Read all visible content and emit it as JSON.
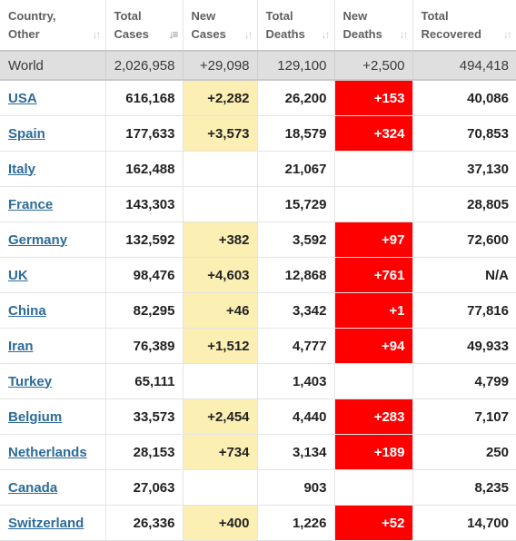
{
  "headers": [
    {
      "line1": "Country,",
      "line2": "Other",
      "sort_icon": "sort-icon"
    },
    {
      "line1": "Total",
      "line2": "Cases",
      "sort_icon": "sort-desc-icon"
    },
    {
      "line1": "New",
      "line2": "Cases",
      "sort_icon": "sort-icon"
    },
    {
      "line1": "Total",
      "line2": "Deaths",
      "sort_icon": "sort-icon"
    },
    {
      "line1": "New",
      "line2": "Deaths",
      "sort_icon": "sort-icon"
    },
    {
      "line1": "Total",
      "line2": "Recovered",
      "sort_icon": "sort-icon"
    }
  ],
  "colors": {
    "new_cases_highlight": "#fcefb3",
    "new_deaths_highlight": "#ff0000",
    "link": "#2d6b99",
    "world_row": "#dfdfdf"
  },
  "world": {
    "country": "World",
    "total_cases": "2,026,958",
    "new_cases": "+29,098",
    "total_deaths": "129,100",
    "new_deaths": "+2,500",
    "total_recovered": "494,418"
  },
  "rows": [
    {
      "country": "USA",
      "total_cases": "616,168",
      "new_cases": "+2,282",
      "total_deaths": "26,200",
      "new_deaths": "+153",
      "total_recovered": "40,086"
    },
    {
      "country": "Spain",
      "total_cases": "177,633",
      "new_cases": "+3,573",
      "total_deaths": "18,579",
      "new_deaths": "+324",
      "total_recovered": "70,853"
    },
    {
      "country": "Italy",
      "total_cases": "162,488",
      "new_cases": "",
      "total_deaths": "21,067",
      "new_deaths": "",
      "total_recovered": "37,130"
    },
    {
      "country": "France",
      "total_cases": "143,303",
      "new_cases": "",
      "total_deaths": "15,729",
      "new_deaths": "",
      "total_recovered": "28,805"
    },
    {
      "country": "Germany",
      "total_cases": "132,592",
      "new_cases": "+382",
      "total_deaths": "3,592",
      "new_deaths": "+97",
      "total_recovered": "72,600"
    },
    {
      "country": "UK",
      "total_cases": "98,476",
      "new_cases": "+4,603",
      "total_deaths": "12,868",
      "new_deaths": "+761",
      "total_recovered": "N/A"
    },
    {
      "country": "China",
      "total_cases": "82,295",
      "new_cases": "+46",
      "total_deaths": "3,342",
      "new_deaths": "+1",
      "total_recovered": "77,816"
    },
    {
      "country": "Iran",
      "total_cases": "76,389",
      "new_cases": "+1,512",
      "total_deaths": "4,777",
      "new_deaths": "+94",
      "total_recovered": "49,933"
    },
    {
      "country": "Turkey",
      "total_cases": "65,111",
      "new_cases": "",
      "total_deaths": "1,403",
      "new_deaths": "",
      "total_recovered": "4,799"
    },
    {
      "country": "Belgium",
      "total_cases": "33,573",
      "new_cases": "+2,454",
      "total_deaths": "4,440",
      "new_deaths": "+283",
      "total_recovered": "7,107"
    },
    {
      "country": "Netherlands",
      "total_cases": "28,153",
      "new_cases": "+734",
      "total_deaths": "3,134",
      "new_deaths": "+189",
      "total_recovered": "250"
    },
    {
      "country": "Canada",
      "total_cases": "27,063",
      "new_cases": "",
      "total_deaths": "903",
      "new_deaths": "",
      "total_recovered": "8,235"
    },
    {
      "country": "Switzerland",
      "total_cases": "26,336",
      "new_cases": "+400",
      "total_deaths": "1,226",
      "new_deaths": "+52",
      "total_recovered": "14,700"
    }
  ]
}
